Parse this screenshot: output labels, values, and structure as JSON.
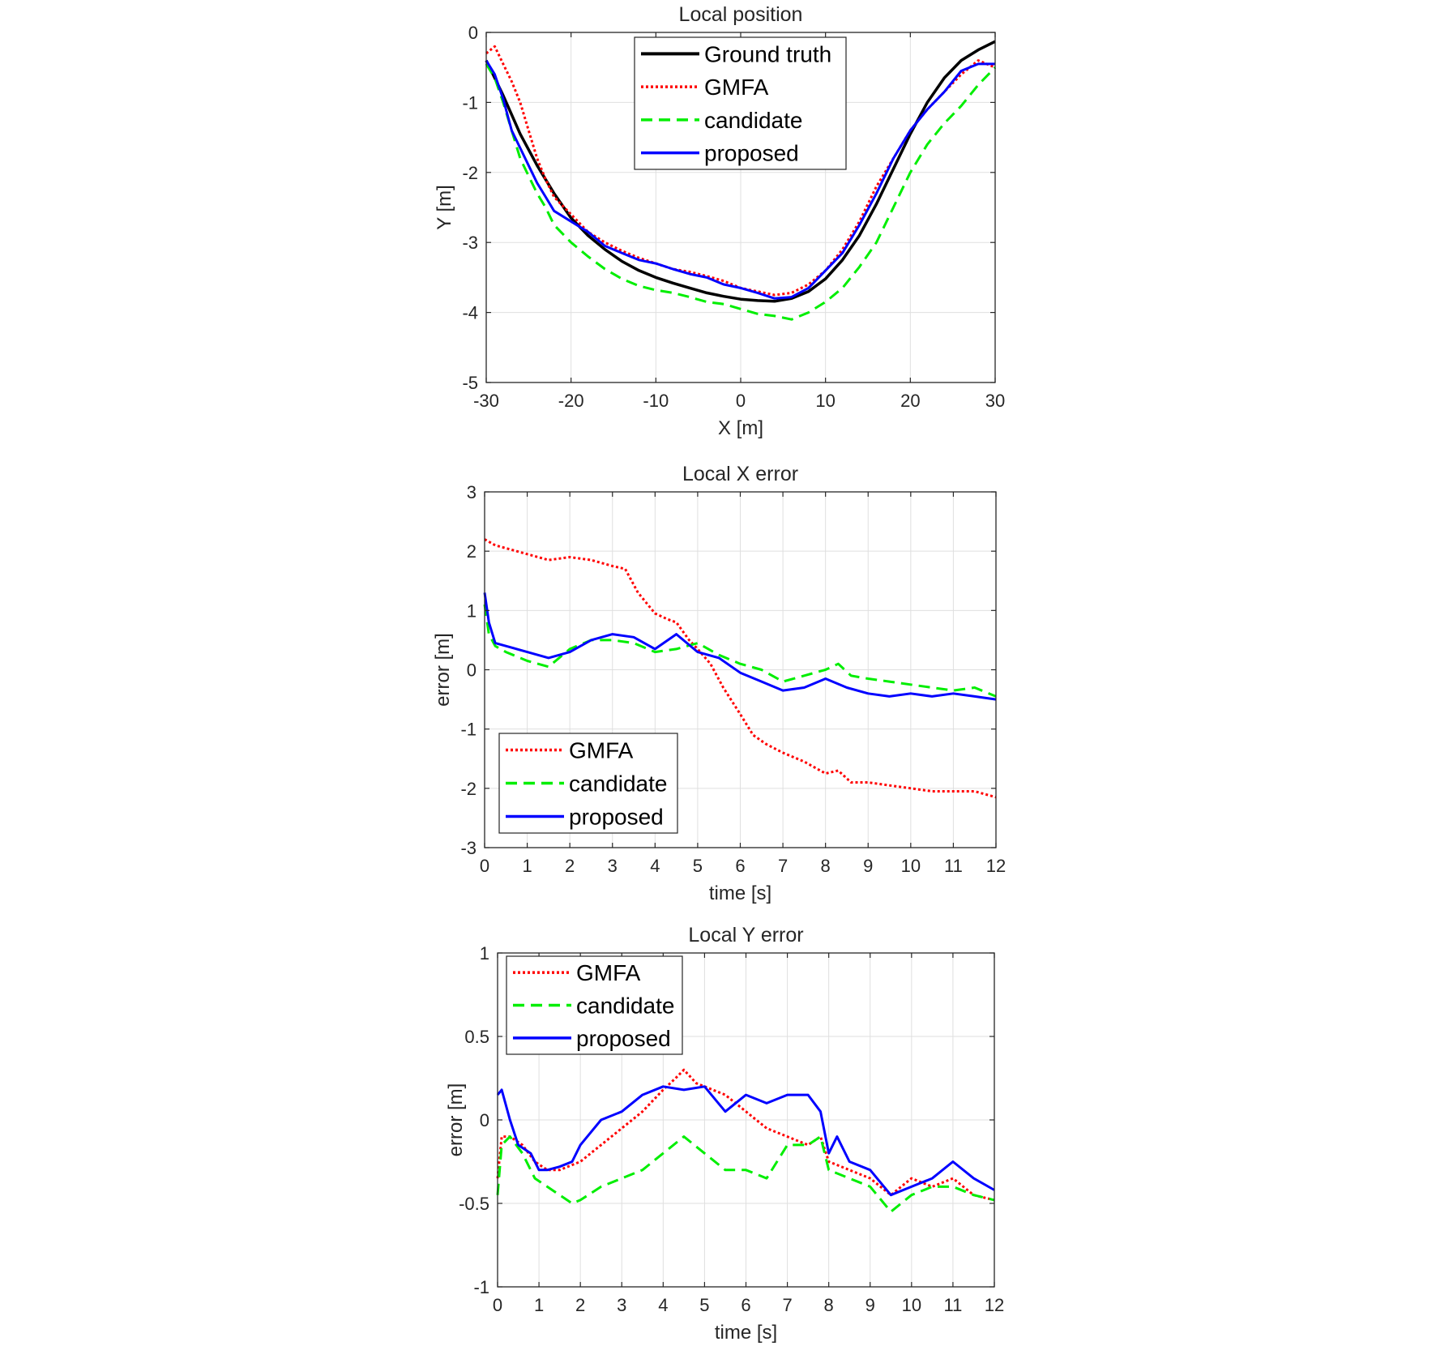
{
  "colors": {
    "ground_truth": "#000000",
    "gmfa": "#ff0000",
    "candidate": "#00ee00",
    "proposed": "#0000ff"
  },
  "chart_data": [
    {
      "type": "line",
      "title": "Local position",
      "xlabel": "X [m]",
      "ylabel": "Y [m]",
      "xlim": [
        -30,
        30
      ],
      "ylim": [
        -5,
        0
      ],
      "xticks": [
        "-30",
        "-20",
        "-10",
        "0",
        "10",
        "20",
        "30"
      ],
      "yticks": [
        "0",
        "-1",
        "-2",
        "-3",
        "-4",
        "-5"
      ],
      "grid": true,
      "legend_position": "top-center",
      "series": [
        {
          "name": "Ground truth",
          "style": "solid",
          "color": "#000000",
          "x": [
            -30,
            -28,
            -26,
            -24,
            -22,
            -20,
            -18,
            -16,
            -14,
            -12,
            -10,
            -8,
            -6,
            -4,
            -2,
            0,
            2,
            4,
            6,
            8,
            10,
            12,
            14,
            16,
            18,
            20,
            22,
            24,
            26,
            28,
            30
          ],
          "y": [
            -0.4,
            -0.9,
            -1.45,
            -1.9,
            -2.3,
            -2.65,
            -2.9,
            -3.1,
            -3.27,
            -3.4,
            -3.5,
            -3.58,
            -3.65,
            -3.72,
            -3.77,
            -3.81,
            -3.83,
            -3.84,
            -3.8,
            -3.7,
            -3.52,
            -3.25,
            -2.9,
            -2.45,
            -1.95,
            -1.45,
            -1.0,
            -0.65,
            -0.4,
            -0.25,
            -0.13
          ]
        },
        {
          "name": "GMFA",
          "style": "dotted",
          "color": "#ff0000",
          "x": [
            -30,
            -29,
            -28,
            -27,
            -26,
            -25,
            -24,
            -23,
            -22,
            -20,
            -18,
            -16,
            -14,
            -12,
            -10,
            -8,
            -6,
            -4,
            -2,
            0,
            2,
            4,
            6,
            8,
            10,
            12,
            14,
            16,
            18,
            20,
            22,
            24,
            26,
            28,
            30
          ],
          "y": [
            -0.3,
            -0.2,
            -0.45,
            -0.7,
            -1.0,
            -1.4,
            -1.8,
            -2.1,
            -2.35,
            -2.6,
            -2.85,
            -3.0,
            -3.12,
            -3.22,
            -3.3,
            -3.38,
            -3.42,
            -3.48,
            -3.55,
            -3.65,
            -3.7,
            -3.75,
            -3.72,
            -3.6,
            -3.4,
            -3.1,
            -2.7,
            -2.2,
            -1.8,
            -1.4,
            -1.1,
            -0.85,
            -0.6,
            -0.4,
            -0.5
          ]
        },
        {
          "name": "candidate",
          "style": "dashed",
          "color": "#00ee00",
          "x": [
            -30,
            -29,
            -28,
            -27,
            -26,
            -25,
            -24,
            -23,
            -22,
            -20,
            -18,
            -16,
            -14,
            -12,
            -10,
            -8,
            -6,
            -4,
            -2,
            0,
            2,
            4,
            6,
            8,
            10,
            12,
            14,
            16,
            18,
            20,
            22,
            24,
            26,
            28,
            30
          ],
          "y": [
            -0.45,
            -0.65,
            -1.0,
            -1.4,
            -1.8,
            -2.05,
            -2.3,
            -2.5,
            -2.75,
            -3.0,
            -3.2,
            -3.38,
            -3.52,
            -3.62,
            -3.68,
            -3.72,
            -3.78,
            -3.85,
            -3.88,
            -3.95,
            -4.02,
            -4.05,
            -4.1,
            -4.0,
            -3.85,
            -3.65,
            -3.35,
            -3.0,
            -2.5,
            -2.0,
            -1.6,
            -1.3,
            -1.05,
            -0.75,
            -0.5
          ]
        },
        {
          "name": "proposed",
          "style": "solid",
          "color": "#0000ff",
          "x": [
            -30,
            -29,
            -28,
            -27,
            -26,
            -25,
            -24,
            -23,
            -22,
            -20,
            -18,
            -16,
            -14,
            -12,
            -10,
            -8,
            -6,
            -4,
            -2,
            0,
            2,
            4,
            6,
            8,
            10,
            12,
            14,
            16,
            18,
            20,
            22,
            24,
            26,
            28,
            30
          ],
          "y": [
            -0.4,
            -0.6,
            -0.95,
            -1.4,
            -1.65,
            -1.9,
            -2.15,
            -2.35,
            -2.55,
            -2.7,
            -2.85,
            -3.05,
            -3.15,
            -3.25,
            -3.3,
            -3.38,
            -3.45,
            -3.5,
            -3.6,
            -3.65,
            -3.72,
            -3.8,
            -3.78,
            -3.65,
            -3.4,
            -3.15,
            -2.75,
            -2.3,
            -1.8,
            -1.4,
            -1.1,
            -0.85,
            -0.55,
            -0.45,
            -0.45
          ]
        }
      ]
    },
    {
      "type": "line",
      "title": "Local X error",
      "xlabel": "time [s]",
      "ylabel": "error [m]",
      "xlim": [
        0,
        12
      ],
      "ylim": [
        -3,
        3
      ],
      "xticks": [
        "0",
        "1",
        "2",
        "3",
        "4",
        "5",
        "6",
        "7",
        "8",
        "9",
        "10",
        "11",
        "12"
      ],
      "yticks": [
        "3",
        "2",
        "1",
        "0",
        "-1",
        "-2",
        "-3"
      ],
      "grid": true,
      "legend_position": "bottom-left",
      "series": [
        {
          "name": "GMFA",
          "style": "dotted",
          "color": "#ff0000",
          "x": [
            0,
            0.25,
            0.5,
            1,
            1.5,
            2,
            2.5,
            3,
            3.3,
            3.6,
            4,
            4.3,
            4.5,
            4.8,
            5,
            5.3,
            5.6,
            6,
            6.3,
            6.6,
            7,
            7.5,
            8,
            8.3,
            8.6,
            9,
            9.5,
            10,
            10.5,
            11,
            11.5,
            12
          ],
          "y": [
            2.2,
            2.1,
            2.05,
            1.95,
            1.85,
            1.9,
            1.85,
            1.75,
            1.7,
            1.3,
            0.95,
            0.85,
            0.8,
            0.5,
            0.35,
            0.1,
            -0.3,
            -0.75,
            -1.1,
            -1.25,
            -1.4,
            -1.55,
            -1.75,
            -1.7,
            -1.9,
            -1.9,
            -1.95,
            -2.0,
            -2.05,
            -2.05,
            -2.05,
            -2.15
          ]
        },
        {
          "name": "candidate",
          "style": "dashed",
          "color": "#00ee00",
          "x": [
            0,
            0.1,
            0.25,
            0.5,
            1,
            1.5,
            2,
            2.5,
            3,
            3.5,
            4,
            4.5,
            5,
            5.5,
            6,
            6.5,
            7,
            7.5,
            8,
            8.3,
            8.6,
            9,
            9.5,
            10,
            10.5,
            11,
            11.5,
            12
          ],
          "y": [
            1.1,
            0.6,
            0.4,
            0.3,
            0.15,
            0.05,
            0.35,
            0.5,
            0.5,
            0.45,
            0.3,
            0.35,
            0.45,
            0.25,
            0.1,
            0.0,
            -0.2,
            -0.1,
            0.0,
            0.1,
            -0.1,
            -0.15,
            -0.2,
            -0.25,
            -0.3,
            -0.35,
            -0.3,
            -0.45
          ]
        },
        {
          "name": "proposed",
          "style": "solid",
          "color": "#0000ff",
          "x": [
            0,
            0.1,
            0.25,
            0.5,
            1,
            1.5,
            2,
            2.5,
            3,
            3.5,
            4,
            4.5,
            5,
            5.5,
            6,
            6.5,
            7,
            7.5,
            8,
            8.5,
            9,
            9.5,
            10,
            10.5,
            11,
            11.5,
            12
          ],
          "y": [
            1.3,
            0.8,
            0.45,
            0.4,
            0.3,
            0.2,
            0.3,
            0.5,
            0.6,
            0.55,
            0.35,
            0.6,
            0.3,
            0.2,
            -0.05,
            -0.2,
            -0.35,
            -0.3,
            -0.15,
            -0.3,
            -0.4,
            -0.45,
            -0.4,
            -0.45,
            -0.4,
            -0.45,
            -0.5
          ]
        }
      ]
    },
    {
      "type": "line",
      "title": "Local Y error",
      "xlabel": "time [s]",
      "ylabel": "error [m]",
      "xlim": [
        0,
        12
      ],
      "ylim": [
        -1,
        1
      ],
      "xticks": [
        "0",
        "1",
        "2",
        "3",
        "4",
        "5",
        "6",
        "7",
        "8",
        "9",
        "10",
        "11",
        "12"
      ],
      "yticks": [
        "1",
        "0.5",
        "0",
        "-0.5",
        "-1"
      ],
      "grid": true,
      "legend_position": "top-left",
      "series": [
        {
          "name": "GMFA",
          "style": "dotted",
          "color": "#ff0000",
          "x": [
            0,
            0.1,
            0.3,
            0.6,
            0.9,
            1.2,
            1.5,
            2,
            2.5,
            3,
            3.5,
            4,
            4.3,
            4.5,
            4.8,
            5,
            5.5,
            6,
            6.5,
            7,
            7.5,
            7.8,
            8,
            8.5,
            9,
            9.5,
            10,
            10.5,
            11,
            11.5,
            12
          ],
          "y": [
            -0.35,
            -0.1,
            -0.1,
            -0.15,
            -0.25,
            -0.3,
            -0.3,
            -0.25,
            -0.15,
            -0.05,
            0.05,
            0.18,
            0.25,
            0.3,
            0.22,
            0.2,
            0.15,
            0.05,
            -0.05,
            -0.1,
            -0.15,
            -0.1,
            -0.25,
            -0.3,
            -0.35,
            -0.45,
            -0.35,
            -0.4,
            -0.35,
            -0.45,
            -0.48
          ]
        },
        {
          "name": "candidate",
          "style": "dashed",
          "color": "#00ee00",
          "x": [
            0,
            0.1,
            0.3,
            0.6,
            0.9,
            1.2,
            1.5,
            1.8,
            2,
            2.5,
            3,
            3.5,
            4,
            4.5,
            5,
            5.5,
            6,
            6.5,
            7,
            7.5,
            7.8,
            8,
            8.5,
            9,
            9.5,
            10,
            10.5,
            11,
            11.5,
            12
          ],
          "y": [
            -0.45,
            -0.15,
            -0.1,
            -0.2,
            -0.35,
            -0.4,
            -0.45,
            -0.5,
            -0.48,
            -0.4,
            -0.35,
            -0.3,
            -0.2,
            -0.1,
            -0.2,
            -0.3,
            -0.3,
            -0.35,
            -0.15,
            -0.15,
            -0.1,
            -0.3,
            -0.35,
            -0.4,
            -0.55,
            -0.45,
            -0.4,
            -0.4,
            -0.45,
            -0.48
          ]
        },
        {
          "name": "proposed",
          "style": "solid",
          "color": "#0000ff",
          "x": [
            0,
            0.1,
            0.3,
            0.5,
            0.8,
            1,
            1.2,
            1.5,
            1.8,
            2,
            2.5,
            3,
            3.5,
            4,
            4.5,
            5,
            5.5,
            6,
            6.5,
            7,
            7.5,
            7.8,
            8,
            8.2,
            8.5,
            9,
            9.5,
            10,
            10.5,
            11,
            11.5,
            12
          ],
          "y": [
            0.15,
            0.18,
            0.0,
            -0.15,
            -0.2,
            -0.3,
            -0.3,
            -0.28,
            -0.25,
            -0.15,
            0.0,
            0.05,
            0.15,
            0.2,
            0.18,
            0.2,
            0.05,
            0.15,
            0.1,
            0.15,
            0.15,
            0.05,
            -0.2,
            -0.1,
            -0.25,
            -0.3,
            -0.45,
            -0.4,
            -0.35,
            -0.25,
            -0.35,
            -0.42
          ]
        }
      ]
    }
  ]
}
